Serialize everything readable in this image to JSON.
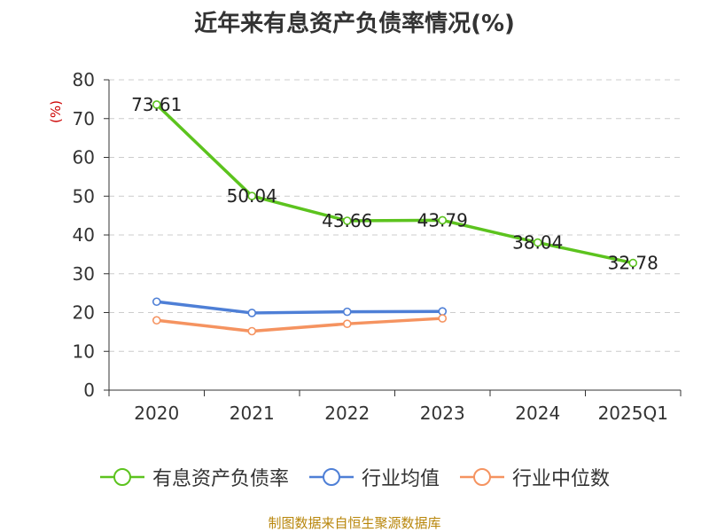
{
  "chart_data": {
    "type": "line",
    "title": "近年来有息资产负债率情况(%)",
    "ylabel": "(%)",
    "xlabel": "",
    "categories": [
      "2020",
      "2021",
      "2022",
      "2023",
      "2024",
      "2025Q1"
    ],
    "ylim": [
      0,
      80
    ],
    "yticks": [
      0,
      10,
      20,
      30,
      40,
      50,
      60,
      70,
      80
    ],
    "grid": true,
    "legend_position": "bottom",
    "series": [
      {
        "name": "有息资产负债率",
        "color": "#5cc31e",
        "show_labels": true,
        "values": [
          73.61,
          50.04,
          43.66,
          43.79,
          38.04,
          32.78
        ]
      },
      {
        "name": "行业均值",
        "color": "#4e7fd6",
        "show_labels": false,
        "values": [
          22.8,
          19.9,
          20.2,
          20.3,
          null,
          null
        ]
      },
      {
        "name": "行业中位数",
        "color": "#f59360",
        "show_labels": false,
        "values": [
          18.0,
          15.2,
          17.1,
          18.5,
          null,
          null
        ]
      }
    ]
  },
  "source": "制图数据来自恒生聚源数据库"
}
